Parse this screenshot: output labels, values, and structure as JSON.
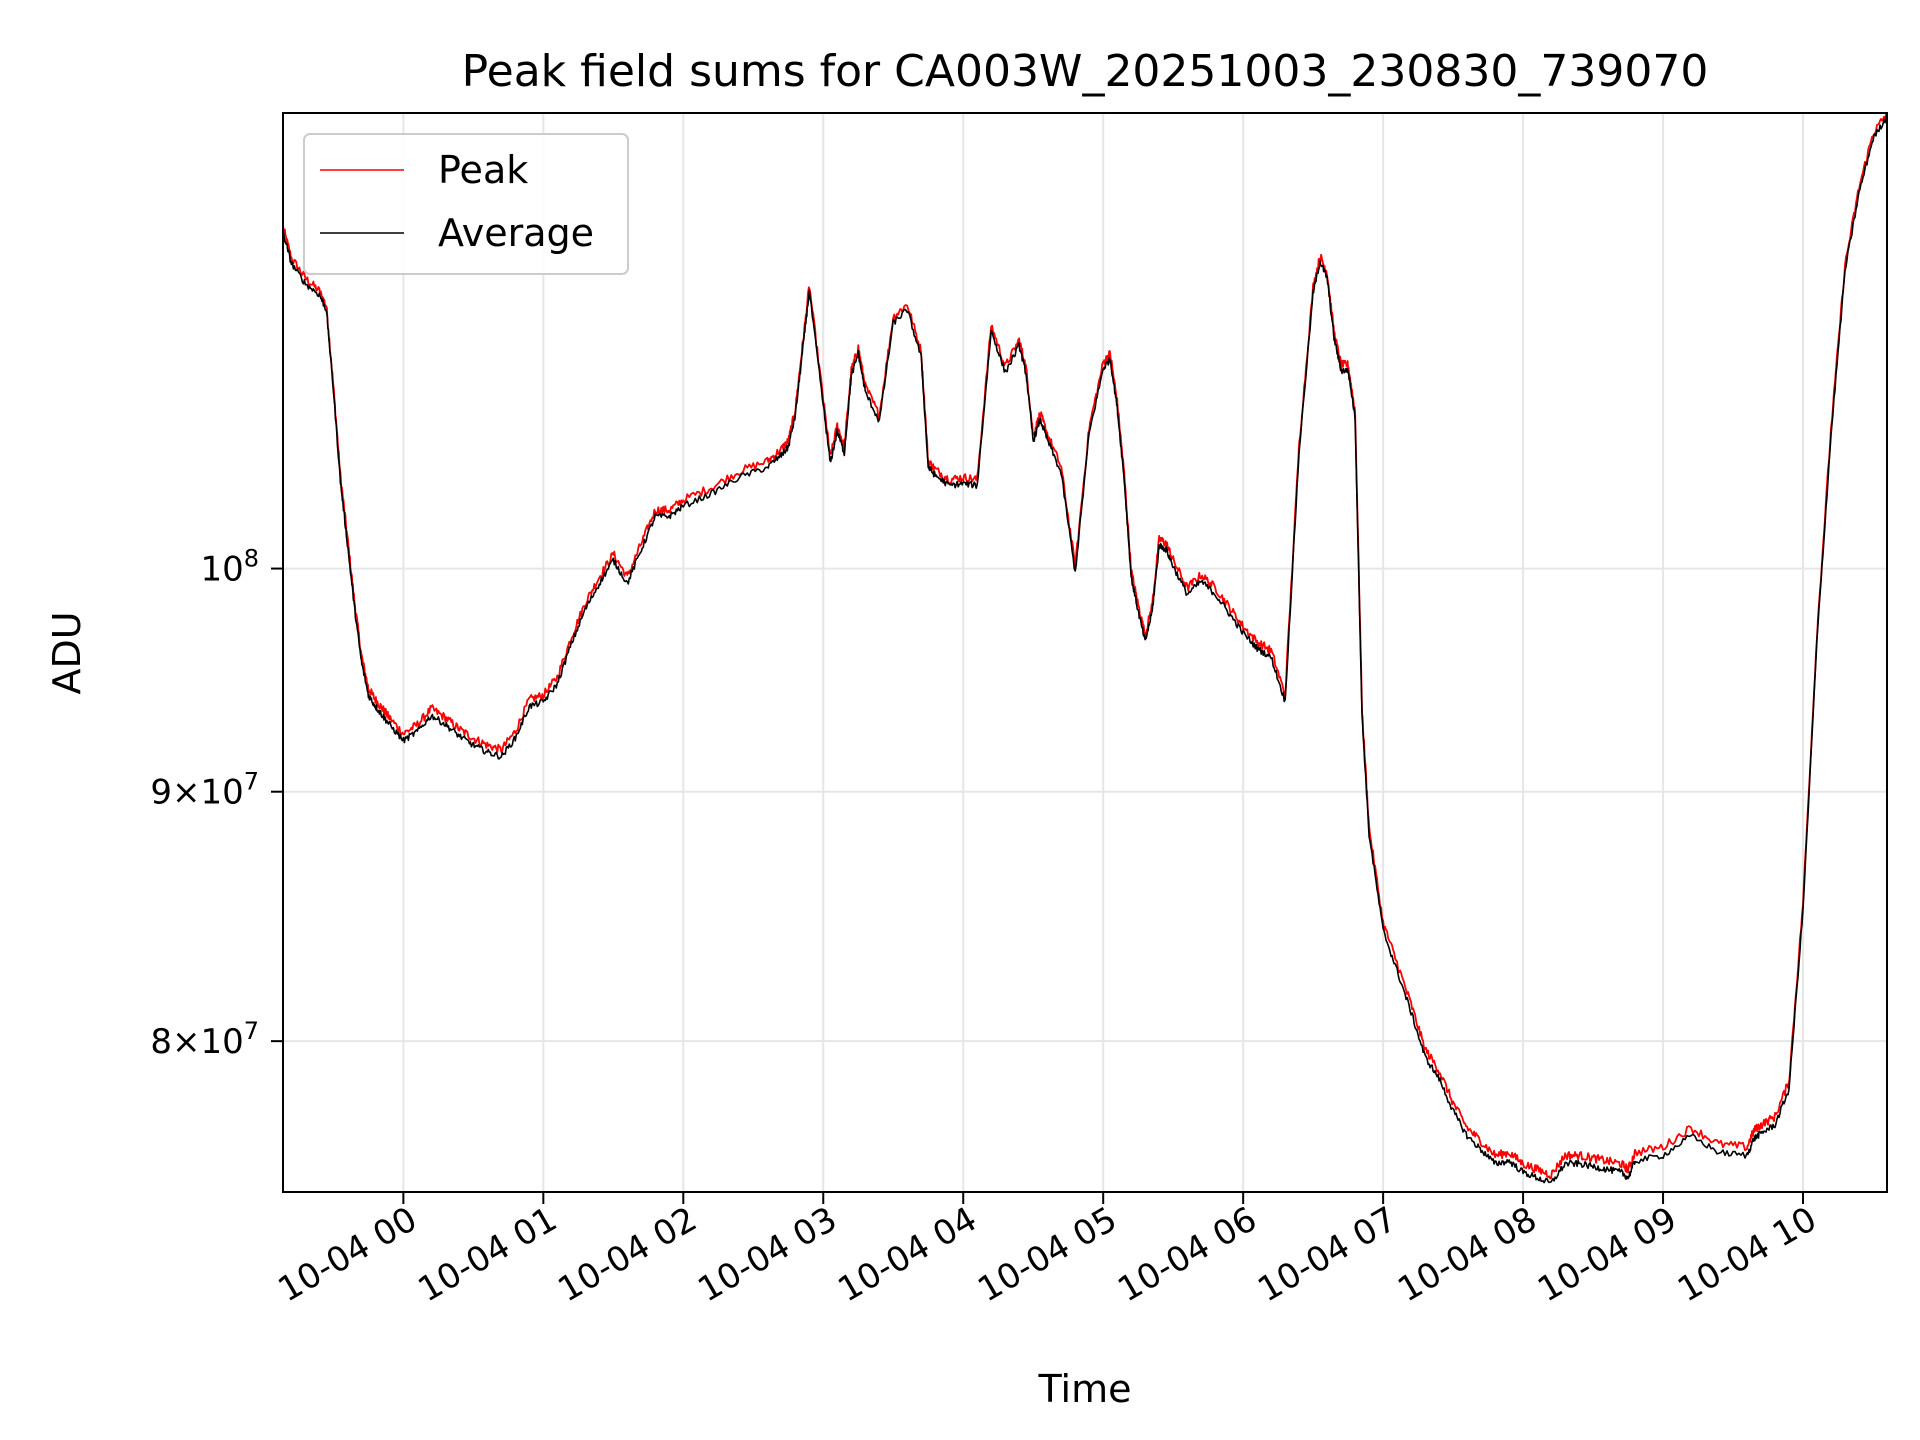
{
  "chart_data": {
    "type": "line",
    "title": "Peak field sums for CA003W_20251003_230830_739070",
    "xlabel": "Time",
    "ylabel": "ADU",
    "yscale": "log",
    "ylim": [
      74500000,
      124000000
    ],
    "xlim": [
      -0.86,
      10.6
    ],
    "grid": true,
    "legend_position": "top-left",
    "x_ticks": [
      {
        "value": 0,
        "label": "10-04 00"
      },
      {
        "value": 1,
        "label": "10-04 01"
      },
      {
        "value": 2,
        "label": "10-04 02"
      },
      {
        "value": 3,
        "label": "10-04 03"
      },
      {
        "value": 4,
        "label": "10-04 04"
      },
      {
        "value": 5,
        "label": "10-04 05"
      },
      {
        "value": 6,
        "label": "10-04 06"
      },
      {
        "value": 7,
        "label": "10-04 07"
      },
      {
        "value": 8,
        "label": "10-04 08"
      },
      {
        "value": 9,
        "label": "10-04 09"
      },
      {
        "value": 10,
        "label": "10-04 10"
      }
    ],
    "y_ticks": [
      {
        "value": 80000000,
        "mantissa": "8",
        "exponent": "7"
      },
      {
        "value": 90000000,
        "mantissa": "9",
        "exponent": "7"
      },
      {
        "value": 100000000,
        "mantissa": "10",
        "exponent": "8"
      }
    ],
    "series": [
      {
        "name": "Peak",
        "color": "#ff0000",
        "x": [
          -0.86,
          -0.8,
          -0.7,
          -0.6,
          -0.55,
          -0.5,
          -0.45,
          -0.4,
          -0.35,
          -0.3,
          -0.25,
          -0.2,
          -0.15,
          -0.1,
          0.0,
          0.1,
          0.2,
          0.3,
          0.4,
          0.5,
          0.6,
          0.7,
          0.8,
          0.9,
          1.0,
          1.1,
          1.2,
          1.3,
          1.4,
          1.5,
          1.6,
          1.7,
          1.8,
          1.9,
          2.0,
          2.2,
          2.4,
          2.6,
          2.7,
          2.75,
          2.8,
          2.85,
          2.9,
          3.0,
          3.05,
          3.1,
          3.15,
          3.2,
          3.25,
          3.3,
          3.4,
          3.5,
          3.6,
          3.7,
          3.75,
          3.8,
          3.9,
          4.0,
          4.1,
          4.2,
          4.3,
          4.4,
          4.45,
          4.5,
          4.55,
          4.6,
          4.7,
          4.8,
          4.9,
          5.0,
          5.05,
          5.1,
          5.15,
          5.2,
          5.25,
          5.3,
          5.35,
          5.4,
          5.45,
          5.5,
          5.6,
          5.7,
          5.8,
          5.9,
          6.0,
          6.1,
          6.2,
          6.3,
          6.4,
          6.5,
          6.55,
          6.6,
          6.65,
          6.7,
          6.75,
          6.8,
          6.85,
          6.9,
          7.0,
          7.1,
          7.2,
          7.3,
          7.4,
          7.5,
          7.6,
          7.7,
          7.8,
          7.9,
          8.0,
          8.1,
          8.2,
          8.3,
          8.4,
          8.5,
          8.6,
          8.7,
          8.75,
          8.8,
          9.0,
          9.2,
          9.4,
          9.6,
          9.65,
          9.7,
          9.8,
          9.9,
          10.0,
          10.1,
          10.2,
          10.3,
          10.4,
          10.5,
          10.6
        ],
        "values": [
          117500000,
          115800000,
          114700000,
          114000000,
          113200000,
          109000000,
          104500000,
          101500000,
          98500000,
          96000000,
          94500000,
          94000000,
          93600000,
          93200000,
          92500000,
          92900000,
          93600000,
          93200000,
          92700000,
          92300000,
          92000000,
          91800000,
          92600000,
          94000000,
          94200000,
          95000000,
          96800000,
          98400000,
          99600000,
          100700000,
          99600000,
          101200000,
          102800000,
          102800000,
          103300000,
          103900000,
          104700000,
          105200000,
          105800000,
          106200000,
          107800000,
          111000000,
          114300000,
          108300000,
          105400000,
          107000000,
          105900000,
          109800000,
          111000000,
          109000000,
          107500000,
          112600000,
          113300000,
          110800000,
          105200000,
          104800000,
          104300000,
          104400000,
          104300000,
          112200000,
          110000000,
          111400000,
          109900000,
          106500000,
          107600000,
          106600000,
          104900000,
          100100000,
          106900000,
          110200000,
          110700000,
          108200000,
          104600000,
          99900000,
          98300000,
          96900000,
          98300000,
          101400000,
          101200000,
          100400000,
          99100000,
          99700000,
          99100000,
          98200000,
          97300000,
          96600000,
          96200000,
          94200000,
          106000000,
          114200000,
          115900000,
          115000000,
          111800000,
          110100000,
          110100000,
          107700000,
          93500000,
          88500000,
          84600000,
          83000000,
          81400000,
          79700000,
          78900000,
          77700000,
          76800000,
          76300000,
          75800000,
          75900000,
          75500000,
          75300000,
          75100000,
          75800000,
          75800000,
          75700000,
          75600000,
          75500000,
          75300000,
          75900000,
          76100000,
          76800000,
          76200000,
          76100000,
          76700000,
          76900000,
          77200000,
          78500000,
          85400000,
          97000000,
          106800000,
          115400000,
          119700000,
          122800000,
          124000000
        ]
      },
      {
        "name": "Average",
        "color": "#000000",
        "x": [
          -0.86,
          -0.8,
          -0.7,
          -0.6,
          -0.55,
          -0.5,
          -0.45,
          -0.4,
          -0.35,
          -0.3,
          -0.25,
          -0.2,
          -0.15,
          -0.1,
          0.0,
          0.1,
          0.2,
          0.3,
          0.4,
          0.5,
          0.6,
          0.7,
          0.8,
          0.9,
          1.0,
          1.1,
          1.2,
          1.3,
          1.4,
          1.5,
          1.6,
          1.7,
          1.8,
          1.9,
          2.0,
          2.2,
          2.4,
          2.6,
          2.7,
          2.75,
          2.8,
          2.85,
          2.9,
          3.0,
          3.05,
          3.1,
          3.15,
          3.2,
          3.25,
          3.3,
          3.4,
          3.5,
          3.6,
          3.7,
          3.75,
          3.8,
          3.9,
          4.0,
          4.1,
          4.2,
          4.3,
          4.4,
          4.45,
          4.5,
          4.55,
          4.6,
          4.7,
          4.8,
          4.9,
          5.0,
          5.05,
          5.1,
          5.15,
          5.2,
          5.25,
          5.3,
          5.35,
          5.4,
          5.45,
          5.5,
          5.6,
          5.7,
          5.8,
          5.9,
          6.0,
          6.1,
          6.2,
          6.3,
          6.4,
          6.5,
          6.55,
          6.6,
          6.65,
          6.7,
          6.75,
          6.8,
          6.85,
          6.9,
          7.0,
          7.1,
          7.2,
          7.3,
          7.4,
          7.5,
          7.6,
          7.7,
          7.8,
          7.9,
          8.0,
          8.1,
          8.2,
          8.3,
          8.4,
          8.5,
          8.6,
          8.7,
          8.75,
          8.8,
          9.0,
          9.2,
          9.4,
          9.6,
          9.65,
          9.7,
          9.8,
          9.9,
          10.0,
          10.1,
          10.2,
          10.3,
          10.4,
          10.5,
          10.6
        ],
        "values": [
          117200000,
          115500000,
          114400000,
          113800000,
          113000000,
          108800000,
          104200000,
          101200000,
          98200000,
          95700000,
          94200000,
          93700000,
          93300000,
          92900000,
          92200000,
          92600000,
          93300000,
          92900000,
          92400000,
          92000000,
          91700000,
          91500000,
          92300000,
          93700000,
          93900000,
          94700000,
          96500000,
          98100000,
          99300000,
          100400000,
          99300000,
          100900000,
          102500000,
          102500000,
          103000000,
          103600000,
          104400000,
          104900000,
          105500000,
          105900000,
          107500000,
          110700000,
          114000000,
          108000000,
          105100000,
          106700000,
          105600000,
          109500000,
          110700000,
          108700000,
          107200000,
          112300000,
          113000000,
          110500000,
          104900000,
          104500000,
          104000000,
          104100000,
          104000000,
          111900000,
          109700000,
          111100000,
          109600000,
          106200000,
          107300000,
          106300000,
          104600000,
          99800000,
          106600000,
          109900000,
          110400000,
          107900000,
          104300000,
          99600000,
          98000000,
          96600000,
          98000000,
          101100000,
          100900000,
          100100000,
          98800000,
          99400000,
          98800000,
          97900000,
          97000000,
          96300000,
          95900000,
          93900000,
          105700000,
          113900000,
          115600000,
          114700000,
          111500000,
          109800000,
          109800000,
          107400000,
          93200000,
          88200000,
          84300000,
          82700000,
          81100000,
          79400000,
          78600000,
          77400000,
          76500000,
          76000000,
          75500000,
          75600000,
          75200000,
          75000000,
          74800000,
          75500000,
          75500000,
          75400000,
          75300000,
          75200000,
          75000000,
          75600000,
          75800000,
          76500000,
          75900000,
          75800000,
          76400000,
          76600000,
          76900000,
          78200000,
          85100000,
          96700000,
          106500000,
          115100000,
          119400000,
          122500000,
          123800000
        ]
      }
    ]
  }
}
